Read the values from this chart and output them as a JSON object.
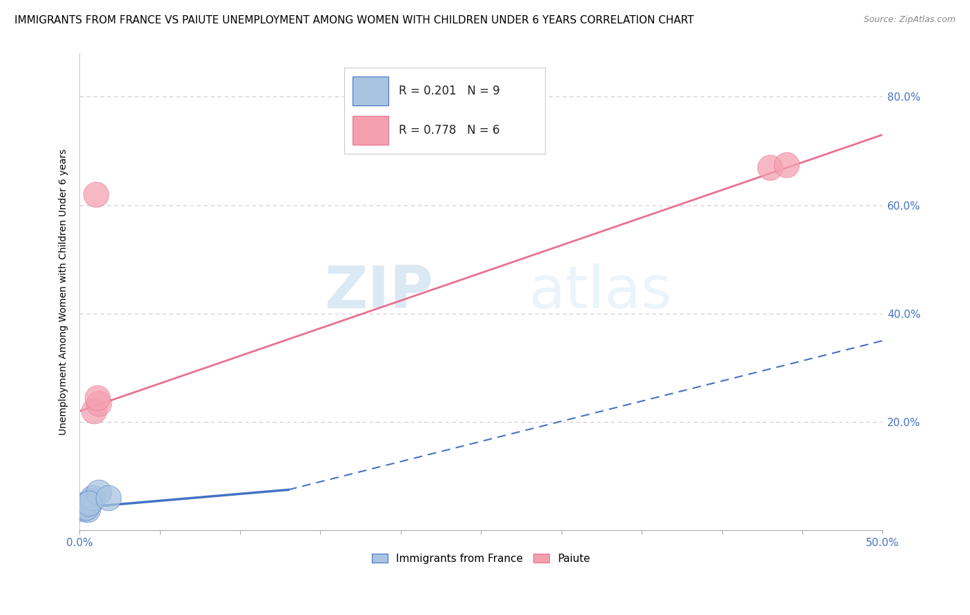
{
  "title": "IMMIGRANTS FROM FRANCE VS PAIUTE UNEMPLOYMENT AMONG WOMEN WITH CHILDREN UNDER 6 YEARS CORRELATION CHART",
  "source": "Source: ZipAtlas.com",
  "ylabel": "Unemployment Among Women with Children Under 6 years",
  "xlim": [
    0.0,
    0.5
  ],
  "ylim": [
    0.0,
    0.88
  ],
  "xticks": [
    0.0,
    0.05,
    0.1,
    0.15,
    0.2,
    0.25,
    0.3,
    0.35,
    0.4,
    0.45,
    0.5
  ],
  "yticks": [
    0.0,
    0.2,
    0.4,
    0.6,
    0.8
  ],
  "ytick_labels": [
    "",
    "20.0%",
    "40.0%",
    "60.0%",
    "80.0%"
  ],
  "xtick_labels": [
    "0.0%",
    "",
    "",
    "",
    "",
    "",
    "",
    "",
    "",
    "",
    "50.0%"
  ],
  "blue_scatter_x": [
    0.003,
    0.005,
    0.007,
    0.003,
    0.004,
    0.008,
    0.012,
    0.006,
    0.018
  ],
  "blue_scatter_y": [
    0.04,
    0.038,
    0.055,
    0.048,
    0.042,
    0.06,
    0.07,
    0.05,
    0.06
  ],
  "pink_scatter_x": [
    0.01,
    0.009,
    0.43,
    0.44,
    0.012,
    0.011
  ],
  "pink_scatter_y": [
    0.62,
    0.22,
    0.67,
    0.675,
    0.235,
    0.245
  ],
  "blue_solid_line_x": [
    0.0,
    0.13
  ],
  "blue_solid_line_y": [
    0.042,
    0.075
  ],
  "blue_dashed_line_x": [
    0.13,
    0.5
  ],
  "blue_dashed_line_y": [
    0.075,
    0.35
  ],
  "pink_line_x": [
    0.0,
    0.5
  ],
  "pink_line_y": [
    0.22,
    0.73
  ],
  "blue_color": "#a8c4e0",
  "pink_color": "#f4a0b0",
  "blue_line_color": "#4472c4",
  "pink_line_color": "#e87090",
  "R_blue": 0.201,
  "N_blue": 9,
  "R_pink": 0.778,
  "N_pink": 6,
  "legend_label_blue": "Immigrants from France",
  "legend_label_pink": "Paiute",
  "watermark_zip": "ZIP",
  "watermark_atlas": "atlas",
  "title_fontsize": 11,
  "label_fontsize": 10,
  "tick_fontsize": 11,
  "scatter_size": 700,
  "grid_color": "#cccccc"
}
